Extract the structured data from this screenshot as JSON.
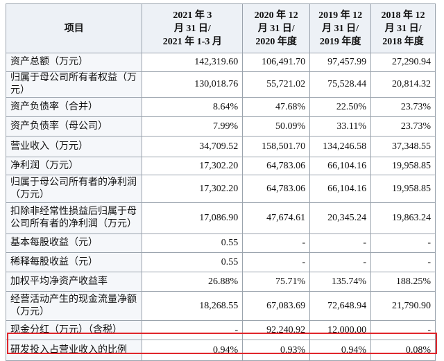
{
  "table": {
    "header": [
      "项目",
      [
        "2021 年 3",
        "月 31 日/",
        "2021 年 1-3 月"
      ],
      [
        "2020 年 12",
        "月 31 日/",
        "2020 年度"
      ],
      [
        "2019 年 12",
        "月 31 日/",
        "2019 年度"
      ],
      [
        "2018 年 12",
        "月 31 日/",
        "2018 年度"
      ]
    ],
    "rows": [
      [
        "资产总额（万元）",
        "142,319.60",
        "106,491.70",
        "97,457.99",
        "27,290.94"
      ],
      [
        "归属于母公司所有者权益（万元）",
        "130,018.76",
        "55,721.02",
        "75,528.44",
        "20,814.32"
      ],
      [
        "资产负债率（合并）",
        "8.64%",
        "47.68%",
        "22.50%",
        "23.73%"
      ],
      [
        "资产负债率（母公司）",
        "7.99%",
        "50.09%",
        "33.11%",
        "23.73%"
      ],
      [
        "营业收入（万元）",
        "34,709.52",
        "158,501.70",
        "134,246.58",
        "37,348.55"
      ],
      [
        "净利润（万元）",
        "17,302.20",
        "64,783.06",
        "66,104.16",
        "19,958.85"
      ],
      [
        "归属于母公司所有者的净利润（万元）",
        "17,302.20",
        "64,783.06",
        "66,104.16",
        "19,958.85"
      ],
      [
        "扣除非经常性损益后归属于母公司所有者的净利润（万元）",
        "17,086.90",
        "47,674.61",
        "20,345.24",
        "19,863.24"
      ],
      [
        "基本每股收益（元）",
        "0.55",
        "-",
        "-",
        "-"
      ],
      [
        "稀释每股收益（元）",
        "0.55",
        "-",
        "-",
        "-"
      ],
      [
        "加权平均净资产收益率",
        "26.88%",
        "75.71%",
        "135.74%",
        "188.25%"
      ],
      [
        "经营活动产生的现金流量净额（万元）",
        "18,268.55",
        "67,083.69",
        "72,648.94",
        "21,790.90"
      ],
      [
        "现金分红（万元）（含税）",
        "-",
        "92,240.92",
        "12,000.00",
        "-"
      ],
      [
        "研发投入占营业收入的比例",
        "0.94%",
        "0.93%",
        "0.94%",
        "0.08%"
      ]
    ]
  }
}
